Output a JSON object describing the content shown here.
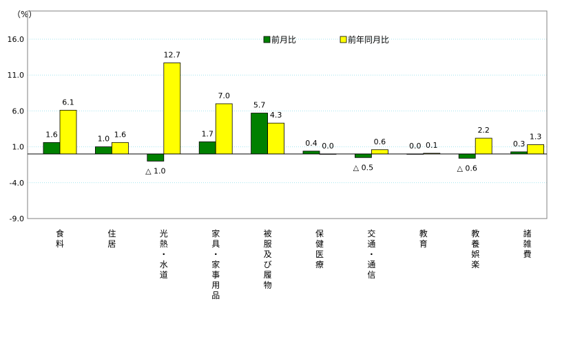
{
  "chart_data": {
    "type": "bar",
    "ylabel": "（%）",
    "ylim": [
      -9.0,
      16.0
    ],
    "yticks": [
      "16.0",
      "11.0",
      "6.0",
      "1.0",
      "-4.0",
      "-9.0"
    ],
    "ytick_values": [
      16,
      11,
      6,
      1,
      -4,
      -9
    ],
    "grid": true,
    "legend_position": "top-right",
    "categories": [
      [
        "食",
        "料"
      ],
      [
        "住",
        "居"
      ],
      [
        "光",
        "熱",
        "・",
        "水",
        "道"
      ],
      [
        "家",
        "具",
        "・",
        "家",
        "事",
        "用",
        "品"
      ],
      [
        "被",
        "服",
        "及",
        "び",
        "履",
        "物"
      ],
      [
        "保",
        "健",
        "医",
        "療"
      ],
      [
        "交",
        "通",
        "・",
        "通",
        "信"
      ],
      [
        "教",
        "育"
      ],
      [
        "教",
        "養",
        "娯",
        "楽"
      ],
      [
        "諸",
        "雑",
        "費"
      ]
    ],
    "series": [
      {
        "name": "前月比",
        "color": "#008000",
        "values": [
          1.6,
          1.0,
          -1.0,
          1.7,
          5.7,
          0.4,
          -0.5,
          0.0,
          -0.6,
          0.3
        ],
        "labels": [
          "1.6",
          "1.0",
          "△ 1.0",
          "1.7",
          "5.7",
          "0.4",
          "△ 0.5",
          "0.0",
          "△ 0.6",
          "0.3"
        ]
      },
      {
        "name": "前年同月比",
        "color": "#ffff00",
        "values": [
          6.1,
          1.6,
          12.7,
          7.0,
          4.3,
          0.0,
          0.6,
          0.1,
          2.2,
          1.3
        ],
        "labels": [
          "6.1",
          "1.6",
          "12.7",
          "7.0",
          "4.3",
          "0.0",
          "0.6",
          "0.1",
          "2.2",
          "1.3"
        ]
      }
    ]
  }
}
